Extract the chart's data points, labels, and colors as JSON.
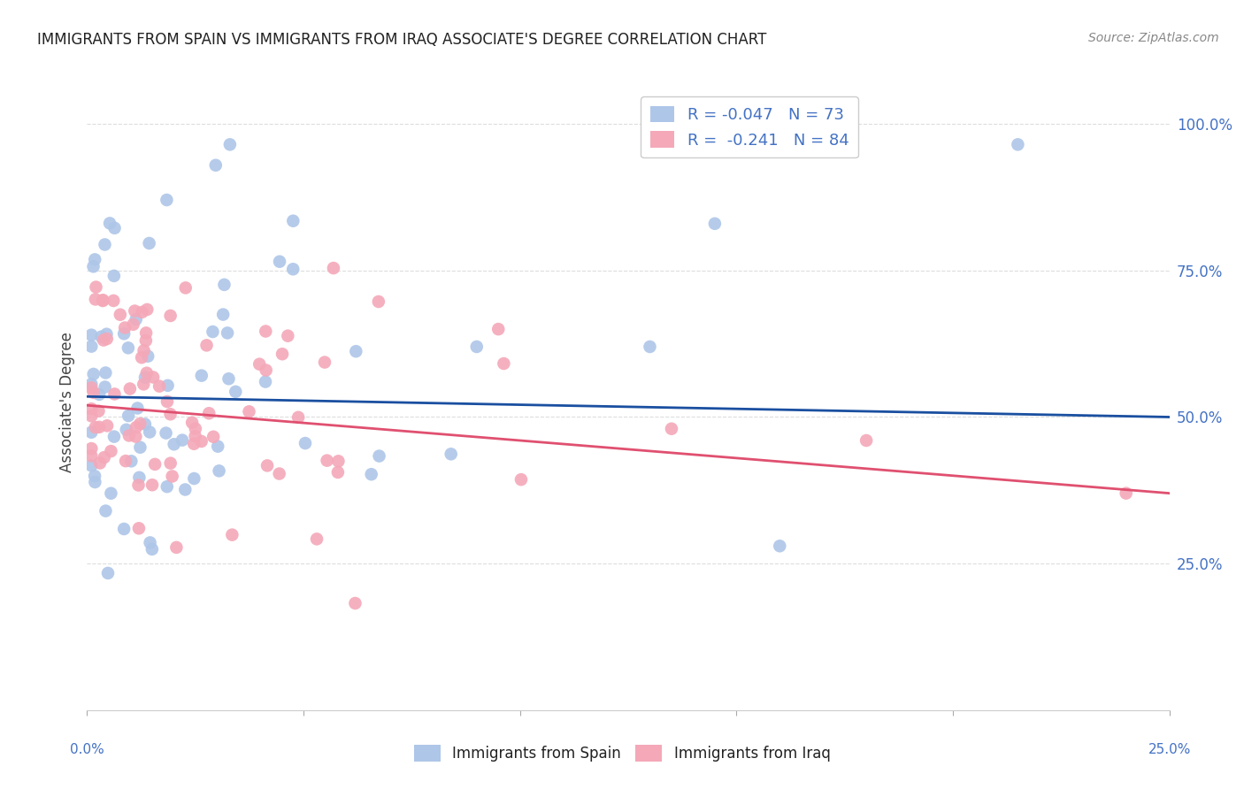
{
  "title": "IMMIGRANTS FROM SPAIN VS IMMIGRANTS FROM IRAQ ASSOCIATE'S DEGREE CORRELATION CHART",
  "source": "Source: ZipAtlas.com",
  "ylabel": "Associate's Degree",
  "y_ticks_labels": [
    "25.0%",
    "50.0%",
    "75.0%",
    "100.0%"
  ],
  "y_tick_vals": [
    0.25,
    0.5,
    0.75,
    1.0
  ],
  "xlim": [
    0.0,
    0.25
  ],
  "ylim": [
    0.0,
    1.05
  ],
  "spain_R": -0.047,
  "spain_N": 73,
  "iraq_R": -0.241,
  "iraq_N": 84,
  "spain_color": "#aec6e8",
  "iraq_color": "#f4a8b8",
  "spain_line_color": "#1a4fa0",
  "iraq_line_color": "#e05070",
  "legend_label_spain": "Immigrants from Spain",
  "legend_label_iraq": "Immigrants from Iraq",
  "background_color": "#ffffff",
  "grid_color": "#dddddd",
  "title_color": "#222222",
  "axis_label_color": "#4472c4",
  "spain_line_y0": 0.535,
  "spain_line_y1": 0.5,
  "iraq_line_y0": 0.52,
  "iraq_line_y1": 0.37
}
